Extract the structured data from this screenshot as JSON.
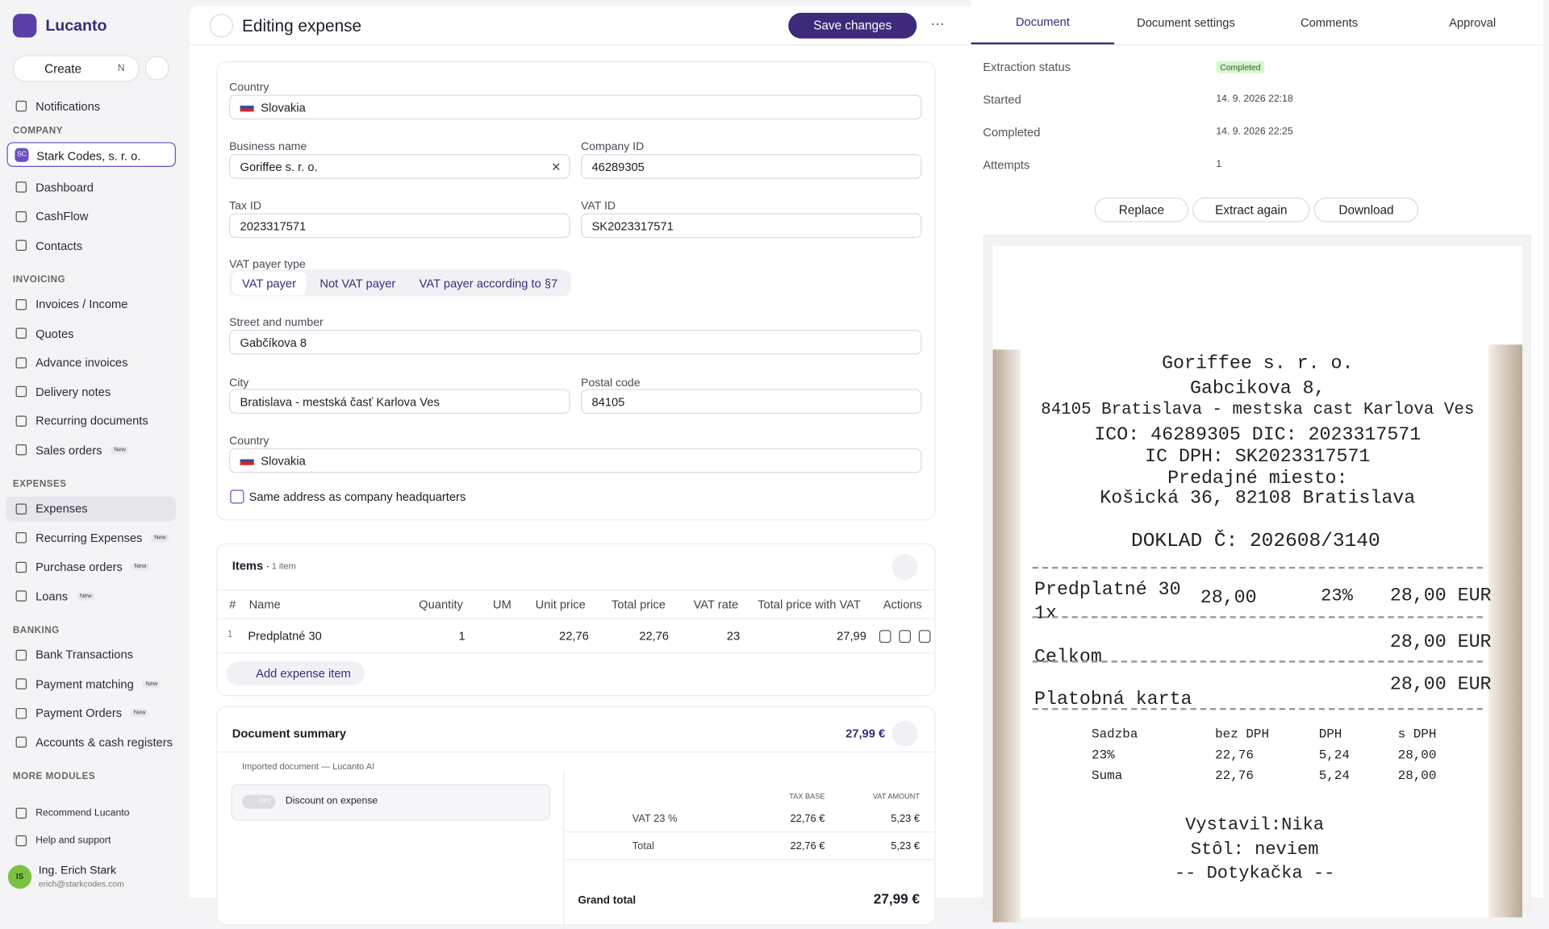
{
  "sidebar": {
    "brand": "Lucanto",
    "create": "Create",
    "create_shortcut": "N",
    "notifications": "Notifications",
    "company_label": "COMPANY",
    "company": {
      "badge": "SC",
      "name": "Stark Codes, s. r. o."
    },
    "sections": [
      {
        "items": [
          {
            "label": "Dashboard"
          },
          {
            "label": "CashFlow"
          },
          {
            "label": "Contacts"
          }
        ]
      },
      {
        "title": "INVOICING",
        "items": [
          {
            "label": "Invoices / Income"
          },
          {
            "label": "Quotes"
          },
          {
            "label": "Advance invoices"
          },
          {
            "label": "Delivery notes"
          },
          {
            "label": "Recurring documents"
          },
          {
            "label": "Sales orders",
            "badge": "New"
          }
        ]
      },
      {
        "title": "EXPENSES",
        "items": [
          {
            "label": "Expenses"
          },
          {
            "label": "Recurring Expenses",
            "badge": "New"
          },
          {
            "label": "Purchase orders",
            "badge": "New"
          },
          {
            "label": "Loans",
            "badge": "New"
          }
        ]
      },
      {
        "title": "BANKING",
        "items": [
          {
            "label": "Bank Transactions"
          },
          {
            "label": "Payment matching",
            "badge": "New"
          },
          {
            "label": "Payment Orders",
            "badge": "New"
          },
          {
            "label": "Accounts & cash registers"
          }
        ]
      },
      {
        "title": "MORE MODULES",
        "items": []
      }
    ],
    "footer": [
      "Recommend Lucanto",
      "Help and support"
    ],
    "user": {
      "initials": "IS",
      "name": "Ing. Erich Stark",
      "email": "erich@starkcodes.com"
    }
  },
  "header": {
    "title": "Editing expense",
    "save": "Save changes"
  },
  "form": {
    "country_label": "Country",
    "country": "Slovakia",
    "business_name_label": "Business name",
    "business_name": "Goriffee s. r. o.",
    "company_id_label": "Company ID",
    "company_id": "46289305",
    "tax_id_label": "Tax ID",
    "tax_id": "2023317571",
    "vat_id_label": "VAT ID",
    "vat_id": "SK2023317571",
    "vat_payer_label": "VAT payer type",
    "vat_payer_options": [
      "VAT payer",
      "Not VAT payer",
      "VAT payer according to §7"
    ],
    "street_label": "Street and number",
    "street": "Gabčíkova 8",
    "city_label": "City",
    "city": "Bratislava - mestská časť Karlova Ves",
    "postal_label": "Postal code",
    "postal": "84105",
    "country2_label": "Country",
    "country2": "Slovakia",
    "same_address": "Same address as company headquarters"
  },
  "items": {
    "title": "Items",
    "count": "1 item",
    "columns": [
      "#",
      "Name",
      "Quantity",
      "UM",
      "Unit price",
      "Total price",
      "VAT rate",
      "Total price with VAT",
      "Actions"
    ],
    "rows": [
      [
        "1",
        "Predplatné 30",
        "1",
        "",
        "22,76",
        "22,76",
        "23",
        "27,99"
      ]
    ],
    "add": "Add expense item"
  },
  "summary": {
    "title": "Document summary",
    "total": "27,99 €",
    "note": "Imported document — Lucanto AI",
    "toggle": "OFF",
    "discount": "Discount on expense",
    "columns": [
      "TAX BASE",
      "VAT AMOUNT"
    ],
    "rows": [
      [
        "VAT 23 %",
        "22,76 €",
        "5,23 €"
      ],
      [
        "Total",
        "22,76 €",
        "5,23 €"
      ]
    ],
    "grand_total_label": "Grand total",
    "grand_total": "27,99 €"
  },
  "right_panel": {
    "tabs": [
      "Document",
      "Document settings",
      "Comments",
      "Approval"
    ],
    "info": [
      [
        "Extraction status",
        "Completed"
      ],
      [
        "Started",
        "14. 9. 2026 22:18"
      ],
      [
        "Completed",
        "14. 9. 2026 22:25"
      ],
      [
        "Attempts",
        "1"
      ]
    ],
    "buttons": [
      "Replace",
      "Extract again",
      "Download"
    ],
    "receipt": {
      "header": [
        "Goriffee s. r. o.",
        "Gabcikova 8,",
        "84105 Bratislava - mestska cast Karlova Ves",
        "ICO: 46289305 DIC: 2023317571",
        "IC DPH: SK2023317571",
        "Predajné miesto:",
        "Košická 36, 82108 Bratislava"
      ],
      "doc": "DOKLAD Č: 202608/3140",
      "item": [
        "Predplatné 30",
        "28,00",
        "23%",
        "28,00 EUR"
      ],
      "qty": "1x",
      "total_label": "Celkom",
      "total": "28,00 EUR",
      "payment_label": "Platobná karta",
      "payment": "28,00 EUR",
      "vat_headers": [
        "Sadzba",
        "bez DPH",
        "DPH",
        "s DPH"
      ],
      "vat_rows": [
        [
          "23%",
          "22,76",
          "5,24",
          "28,00"
        ],
        [
          "Suma",
          "22,76",
          "5,24",
          "28,00"
        ]
      ],
      "footer": [
        "Vystavil:Nika",
        "Stôl: neviem",
        "-- Dotykačka --"
      ]
    }
  }
}
